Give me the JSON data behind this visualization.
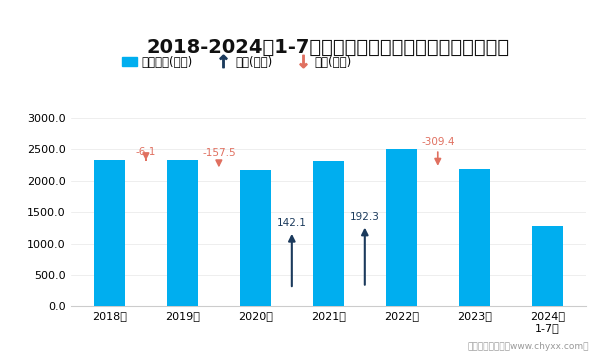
{
  "title": "2018-2024年1-7月全国农副食品加工业出口货值统计图",
  "categories": [
    "2018年",
    "2019年",
    "2020年",
    "2021年",
    "2022年",
    "2023年",
    "2024年\n1-7月"
  ],
  "values": [
    2330.0,
    2323.9,
    2166.4,
    2308.5,
    2500.8,
    2191.4,
    1282.0
  ],
  "changes": [
    null,
    -6.1,
    -157.5,
    142.1,
    192.3,
    -309.4,
    null
  ],
  "bar_color": "#00AEEF",
  "increase_color": "#1B3A5C",
  "decrease_color": "#E07060",
  "ylim": [
    0,
    3200
  ],
  "yticks": [
    0.0,
    500.0,
    1000.0,
    1500.0,
    2000.0,
    2500.0,
    3000.0
  ],
  "background_color": "#ffffff",
  "title_fontsize": 14,
  "footer": "制图：智研咨询（www.chyxx.com）",
  "legend_items": [
    "出口货值(亿元)",
    "增加(亿元)",
    "减少(亿元)"
  ]
}
